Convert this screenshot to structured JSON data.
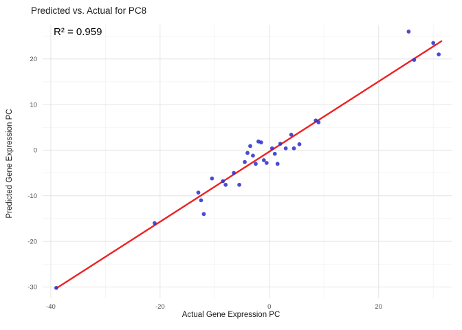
{
  "chart_data": {
    "type": "scatter",
    "title": "Predicted vs. Actual for PC8",
    "annotation": "R² = 0.959",
    "xlabel": "Actual Gene Expression PC",
    "ylabel": "Predicted Gene Expression PC",
    "xlim": [
      -41.5,
      33.5
    ],
    "ylim": [
      -32.5,
      27.5
    ],
    "x_ticks": [
      -40,
      -20,
      0,
      20
    ],
    "y_ticks": [
      -30,
      -20,
      -10,
      0,
      10,
      20
    ],
    "x_minor_ticks": [
      -30,
      -10,
      10,
      30
    ],
    "y_minor_ticks": [
      -25,
      -15,
      -5,
      5,
      15,
      25
    ],
    "grid": true,
    "legend": "none",
    "point_color": "#3232cd",
    "line_color": "#ee2222",
    "major_grid_color": "#e4e4e4",
    "minor_grid_color": "#f2f2f2",
    "tick_label_color": "#4d4d4d",
    "points": [
      [
        -39,
        -30.2
      ],
      [
        -21,
        -16
      ],
      [
        -13,
        -9.3
      ],
      [
        -12.5,
        -11
      ],
      [
        -12,
        -14
      ],
      [
        -10.5,
        -6.2
      ],
      [
        -8.5,
        -6.8
      ],
      [
        -8,
        -7.6
      ],
      [
        -6.5,
        -5
      ],
      [
        -5.5,
        -7.6
      ],
      [
        -4.5,
        -2.6
      ],
      [
        -4,
        -0.6
      ],
      [
        -3.5,
        0.9
      ],
      [
        -3,
        -1.2
      ],
      [
        -2.5,
        -3
      ],
      [
        -2,
        1.9
      ],
      [
        -1.5,
        1.7
      ],
      [
        -1,
        -2.2
      ],
      [
        -0.5,
        -2.8
      ],
      [
        0.5,
        0.4
      ],
      [
        1,
        -0.8
      ],
      [
        1.5,
        -3
      ],
      [
        2,
        1.4
      ],
      [
        3,
        0.4
      ],
      [
        4,
        3.4
      ],
      [
        4.5,
        0.4
      ],
      [
        5.5,
        1.3
      ],
      [
        8.5,
        6.5
      ],
      [
        9,
        6.1
      ],
      [
        25.5,
        26
      ],
      [
        26.5,
        19.8
      ],
      [
        30,
        23.5
      ],
      [
        31,
        21
      ]
    ],
    "fit_line": {
      "x1": -39,
      "y1": -30.3,
      "x2": 31.5,
      "y2": 23.9
    }
  }
}
